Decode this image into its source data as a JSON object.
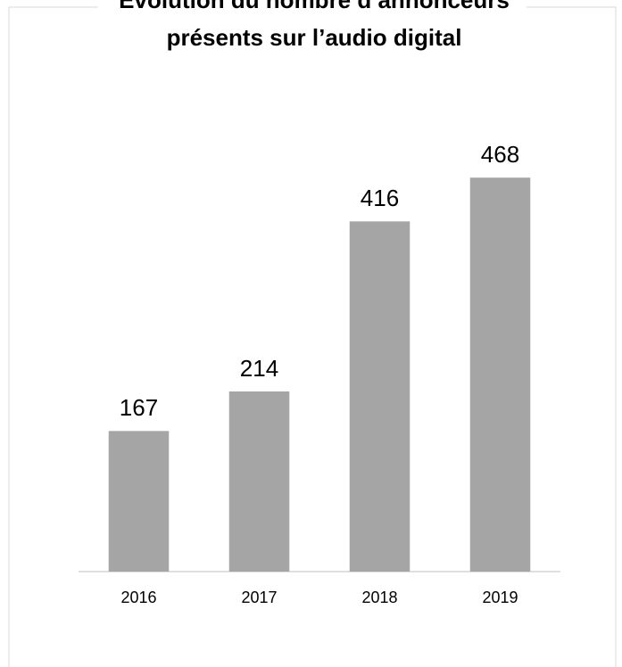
{
  "chart_data": {
    "type": "bar",
    "title": [
      "Évolution du nombre d’annonceurs",
      "présents sur l’audio digital"
    ],
    "categories": [
      "2016",
      "2017",
      "2018",
      "2019"
    ],
    "values": [
      167,
      214,
      416,
      468
    ],
    "color": "#a5a5a5",
    "ylim": [
      0,
      500
    ]
  }
}
